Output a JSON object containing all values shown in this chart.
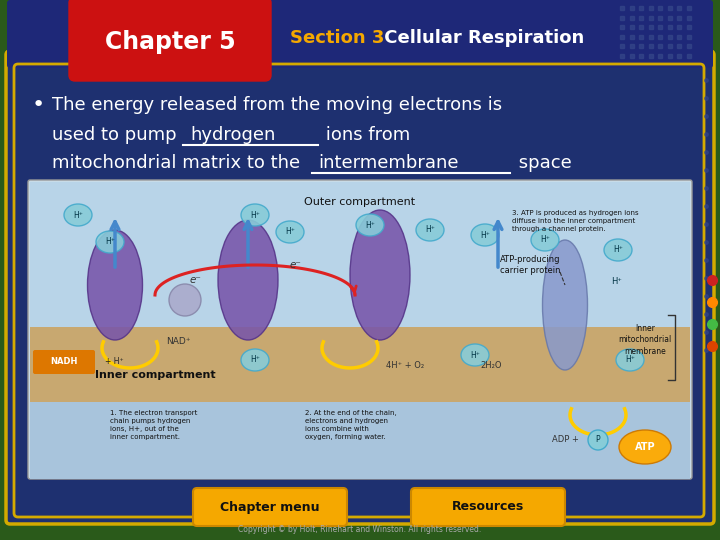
{
  "outer_bg": "#2a5a1a",
  "bg_color": "#1e3070",
  "header_bar_color": "#1e2878",
  "chapter_box_color": "#cc1111",
  "chapter_text": "Chapter 5",
  "section3_color": "#f5a800",
  "section3_text": "Section 3",
  "section_title_color": "#ffffff",
  "section_title_text": " Cellular Respiration",
  "main_border_color": "#d4aa00",
  "bullet_color": "#ffffff",
  "bullet_line1": "The energy released from the moving electrons is",
  "bullet_line2_pre": "used to pump ",
  "bullet_line2_fill": "hydrogen",
  "bullet_line2_post": " ions from",
  "bullet_line3_pre": "mitochondrial matrix to the ",
  "bullet_line3_fill": "intermembrane",
  "bullet_line3_post": " space",
  "diagram_bg": "#c8dce8",
  "outer_comp_color": "#b8d4e8",
  "membrane_color": "#c8a870",
  "inner_comp_color": "#a8c4dc",
  "protein_color": "#7755aa",
  "atp_channel_color": "#8899cc",
  "h_ion_color": "#88ccd8",
  "h_ion_border": "#44aacc",
  "nadh_box_color": "#dd7700",
  "arrow_blue": "#4488cc",
  "arrow_yellow": "#ffcc00",
  "arrow_red": "#dd2222",
  "atp_color": "#ffaa00",
  "footer_btn_color": "#f5a800",
  "footer_btn_border": "#cc8800",
  "footer_text_color": "#111111",
  "footer_btn1": "Chapter menu",
  "footer_btn2": "Resources",
  "copyright_text": "Copyright © by Holt, Rinehart and Winston. All rights reserved.",
  "copyright_color": "#aaaaaa",
  "dot_grid_color": "#334488",
  "right_dots": [
    "#cc2222",
    "#ff8800",
    "#44bb44",
    "#dd4400"
  ]
}
